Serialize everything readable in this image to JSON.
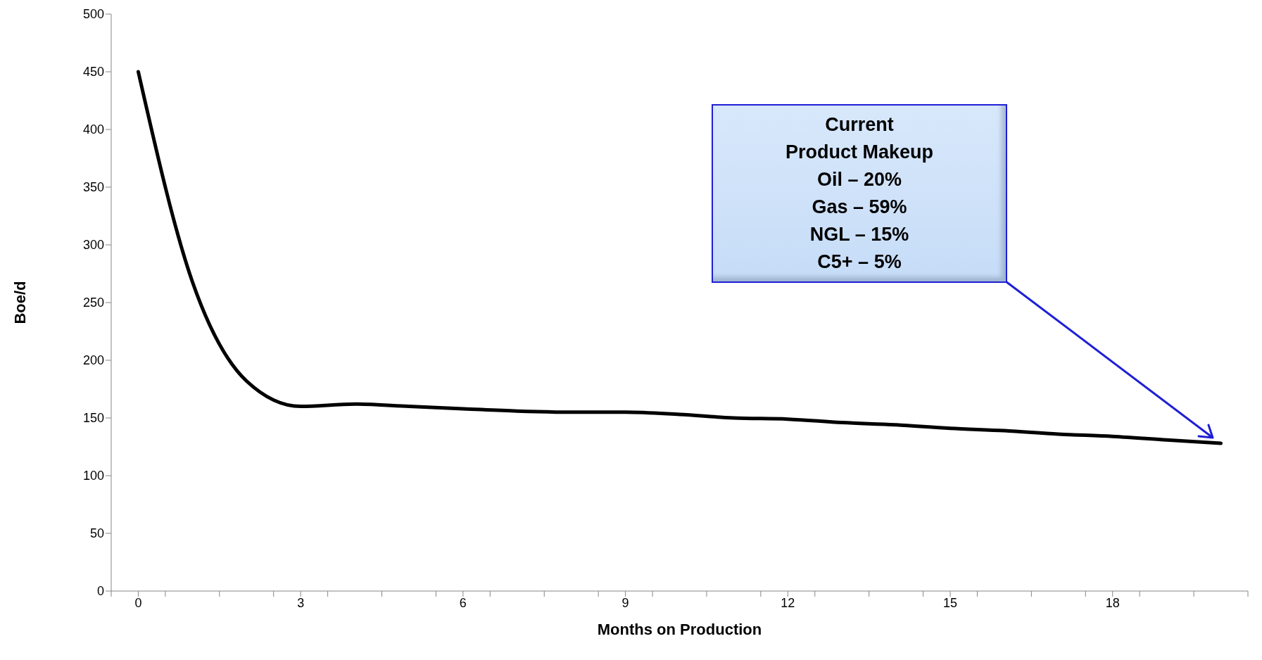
{
  "chart_data": {
    "type": "line",
    "xlabel": "Months on Production",
    "ylabel": "Boe/d",
    "x": [
      0,
      1,
      2,
      3,
      4,
      5,
      6,
      7,
      8,
      9,
      10,
      11,
      12,
      13,
      14,
      15,
      16,
      17,
      18,
      19,
      20
    ],
    "series": [
      {
        "color": "#000000",
        "values": [
          450,
          268,
          182,
          160,
          162,
          160,
          158,
          156,
          155,
          155,
          153,
          150,
          149,
          146,
          144,
          141,
          139,
          136,
          134,
          131,
          128
        ]
      }
    ],
    "xlim": [
      -0.5,
      20.5
    ],
    "xticks": [
      {
        "value": -0.5,
        "label": null
      },
      0,
      {
        "value": 0.5,
        "label": null
      },
      {
        "value": 1.5,
        "label": null
      },
      {
        "value": 2.5,
        "label": null
      },
      3,
      {
        "value": 3.5,
        "label": null
      },
      {
        "value": 4.5,
        "label": null
      },
      {
        "value": 5.5,
        "label": null
      },
      6,
      {
        "value": 6.5,
        "label": null
      },
      {
        "value": 7.5,
        "label": null
      },
      {
        "value": 8.5,
        "label": null
      },
      9,
      {
        "value": 9.5,
        "label": null
      },
      {
        "value": 10.5,
        "label": null
      },
      {
        "value": 11.5,
        "label": null
      },
      12,
      {
        "value": 12.5,
        "label": null
      },
      {
        "value": 13.5,
        "label": null
      },
      {
        "value": 14.5,
        "label": null
      },
      15,
      {
        "value": 15.5,
        "label": null
      },
      {
        "value": 16.5,
        "label": null
      },
      {
        "value": 17.5,
        "label": null
      },
      18,
      {
        "value": 18.5,
        "label": null
      },
      {
        "value": 19.5,
        "label": null
      },
      {
        "value": 20.5,
        "label": null
      }
    ],
    "ylim": [
      0,
      500
    ],
    "yticks": [
      0,
      50,
      100,
      150,
      200,
      250,
      300,
      350,
      400,
      450,
      500
    ],
    "grid": false,
    "legend": false,
    "marker": "none",
    "line_style": "solid",
    "annotations": [
      "Current\nProduct Makeup\nOil – 20%\nGas – 59%\nNGL – 15%\nC5+ – 5%"
    ]
  }
}
